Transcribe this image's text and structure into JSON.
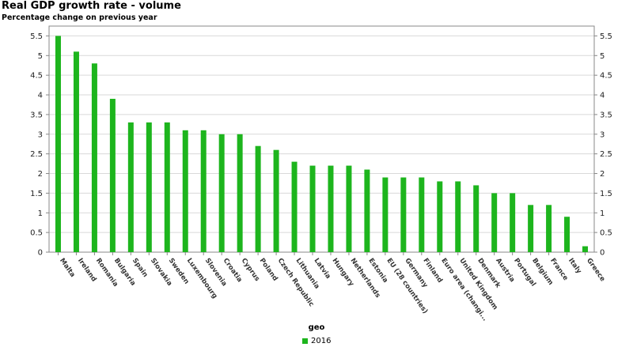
{
  "header": {
    "title": "Real GDP growth rate - volume",
    "subtitle": "Percentage change on previous year"
  },
  "colors": {
    "bar": "#1db51d",
    "grid": "#d9d9d9",
    "axis": "#888888"
  },
  "legend": {
    "title": "geo",
    "label": "2016"
  },
  "chart_data": {
    "type": "bar",
    "title": "Real GDP growth rate - volume",
    "subtitle": "Percentage change on previous year",
    "xlabel": "geo",
    "ylabel": "",
    "ylim": [
      0,
      5.75
    ],
    "yticks": [
      0,
      0.5,
      1,
      1.5,
      2,
      2.5,
      3,
      3.5,
      4,
      4.5,
      5,
      5.5
    ],
    "grid": true,
    "legend_position": "bottom",
    "categories": [
      "Malta",
      "Ireland",
      "Romania",
      "Bulgaria",
      "Spain",
      "Slovakia",
      "Sweden",
      "Luxembourg",
      "Slovenia",
      "Croatia",
      "Cyprus",
      "Poland",
      "Czech Republic",
      "Lithuania",
      "Latvia",
      "Hungary",
      "Netherlands",
      "Estonia",
      "EU (28 countries)",
      "Germany",
      "Finland",
      "Euro area (changi...",
      "United Kingdom",
      "Denmark",
      "Austria",
      "Portugal",
      "Belgium",
      "France",
      "Italy",
      "Greece"
    ],
    "series": [
      {
        "name": "2016",
        "values": [
          5.5,
          5.1,
          4.8,
          3.9,
          3.3,
          3.3,
          3.3,
          3.1,
          3.1,
          3.0,
          3.0,
          2.7,
          2.6,
          2.3,
          2.2,
          2.2,
          2.2,
          2.1,
          1.9,
          1.9,
          1.9,
          1.8,
          1.8,
          1.7,
          1.5,
          1.5,
          1.2,
          1.2,
          0.9,
          0.15
        ]
      }
    ]
  }
}
